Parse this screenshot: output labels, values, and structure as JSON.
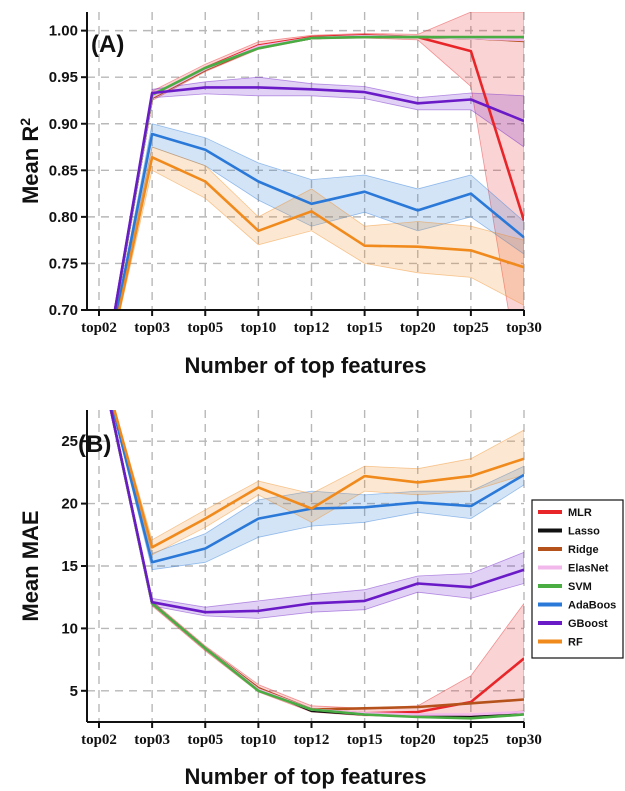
{
  "chart_data": [
    {
      "panel": "(A)",
      "type": "line",
      "title": "",
      "xlabel": "Number of top features",
      "ylabel": "Mean R2",
      "categories": [
        "top02",
        "top03",
        "top05",
        "top10",
        "top12",
        "top15",
        "top20",
        "top25",
        "top30"
      ],
      "ylim": [
        0.7,
        1.02
      ],
      "yticks": [
        0.7,
        0.75,
        0.8,
        0.85,
        0.9,
        0.95,
        1.0
      ],
      "ytick_labels": [
        "0.70",
        "0.75",
        "0.80",
        "0.85",
        "0.90",
        "0.95",
        "1.00"
      ],
      "grid": true,
      "series": [
        {
          "name": "MLR",
          "color": "#e8262a",
          "values": [
            0.6,
            0.93,
            0.96,
            0.984,
            0.993,
            0.995,
            0.993,
            0.978,
            0.796
          ],
          "lower": [
            0.6,
            0.925,
            0.956,
            0.98,
            0.991,
            0.992,
            0.99,
            0.94,
            0.6
          ],
          "upper": [
            0.6,
            0.935,
            0.964,
            0.988,
            0.995,
            0.997,
            0.996,
            1.02,
            1.02
          ]
        },
        {
          "name": "Lasso",
          "color": "#111111",
          "values": [
            0.6,
            0.928,
            0.958,
            0.982,
            0.992,
            0.994,
            0.993,
            0.992,
            0.99
          ]
        },
        {
          "name": "Ridge",
          "color": "#b5521b",
          "values": [
            0.6,
            0.928,
            0.958,
            0.982,
            0.992,
            0.994,
            0.993,
            0.992,
            0.989
          ]
        },
        {
          "name": "ElasNet",
          "color": "#f2b8ec",
          "values": [
            0.6,
            0.929,
            0.959,
            0.983,
            0.992,
            0.994,
            0.993,
            0.992,
            0.99
          ]
        },
        {
          "name": "SVM",
          "color": "#4aad44",
          "values": [
            0.6,
            0.931,
            0.96,
            0.981,
            0.992,
            0.993,
            0.993,
            0.993,
            0.993
          ]
        },
        {
          "name": "AdaBoos",
          "color": "#2a79d8",
          "values": [
            0.6,
            0.889,
            0.872,
            0.838,
            0.814,
            0.827,
            0.807,
            0.825,
            0.778
          ],
          "lower": [
            0.6,
            0.875,
            0.855,
            0.818,
            0.79,
            0.805,
            0.785,
            0.8,
            0.76
          ],
          "upper": [
            0.6,
            0.9,
            0.885,
            0.858,
            0.84,
            0.845,
            0.83,
            0.845,
            0.795
          ]
        },
        {
          "name": "GBoost",
          "color": "#6a1bc7",
          "values": [
            0.6,
            0.933,
            0.939,
            0.939,
            0.937,
            0.934,
            0.922,
            0.926,
            0.903
          ],
          "lower": [
            0.6,
            0.928,
            0.932,
            0.93,
            0.93,
            0.927,
            0.915,
            0.915,
            0.875
          ],
          "upper": [
            0.6,
            0.937,
            0.945,
            0.95,
            0.943,
            0.94,
            0.928,
            0.933,
            0.93
          ]
        },
        {
          "name": "RF",
          "color": "#f08a1c",
          "values": [
            0.6,
            0.864,
            0.838,
            0.785,
            0.806,
            0.769,
            0.768,
            0.764,
            0.746
          ],
          "lower": [
            0.6,
            0.85,
            0.82,
            0.77,
            0.785,
            0.75,
            0.74,
            0.735,
            0.705
          ],
          "upper": [
            0.6,
            0.875,
            0.855,
            0.8,
            0.83,
            0.79,
            0.795,
            0.79,
            0.775
          ]
        }
      ]
    },
    {
      "panel": "(B)",
      "type": "line",
      "title": "",
      "xlabel": "Number of top features",
      "ylabel": "Mean MAE",
      "categories": [
        "top02",
        "top03",
        "top05",
        "top10",
        "top12",
        "top15",
        "top20",
        "top25",
        "top30"
      ],
      "ylim": [
        2.5,
        27.5
      ],
      "yticks": [
        5,
        10,
        15,
        20,
        25
      ],
      "ytick_labels": [
        "5",
        "10",
        "15",
        "20",
        "25"
      ],
      "grid": true,
      "legend_position": "right",
      "series": [
        {
          "name": "MLR",
          "color": "#e8262a",
          "values": [
            32,
            12.0,
            8.4,
            5.2,
            3.5,
            3.2,
            3.3,
            4.1,
            7.6
          ],
          "lower": [
            32,
            11.8,
            8.2,
            4.9,
            3.3,
            3.0,
            3.0,
            3.0,
            3.4
          ],
          "upper": [
            32,
            12.2,
            8.6,
            5.5,
            3.8,
            3.6,
            3.8,
            6.2,
            12.0
          ]
        },
        {
          "name": "Lasso",
          "color": "#111111",
          "values": [
            32,
            12.0,
            8.4,
            5.2,
            3.4,
            3.1,
            3.0,
            2.9,
            3.3
          ]
        },
        {
          "name": "Ridge",
          "color": "#b5521b",
          "values": [
            32,
            12.0,
            8.4,
            5.2,
            3.5,
            3.6,
            3.7,
            4.0,
            4.3
          ]
        },
        {
          "name": "ElasNet",
          "color": "#f2b8ec",
          "values": [
            32,
            12.0,
            8.4,
            5.1,
            3.5,
            3.2,
            3.1,
            3.1,
            3.3
          ]
        },
        {
          "name": "SVM",
          "color": "#4aad44",
          "values": [
            32,
            12.0,
            8.4,
            5.0,
            3.5,
            3.1,
            2.9,
            2.8,
            3.1
          ]
        },
        {
          "name": "AdaBoos",
          "color": "#2a79d8",
          "values": [
            32,
            15.3,
            16.4,
            18.8,
            19.6,
            19.7,
            20.1,
            19.8,
            22.3
          ],
          "lower": [
            32,
            14.7,
            15.3,
            17.3,
            18.2,
            18.5,
            19.3,
            18.8,
            21.5
          ],
          "upper": [
            32,
            16.0,
            17.6,
            20.3,
            21.0,
            20.7,
            21.0,
            21.0,
            23.0
          ]
        },
        {
          "name": "GBoost",
          "color": "#6a1bc7",
          "values": [
            32,
            12.1,
            11.3,
            11.4,
            12.0,
            12.2,
            13.6,
            13.3,
            14.7
          ],
          "lower": [
            32,
            11.8,
            11.0,
            10.8,
            11.3,
            11.5,
            12.9,
            12.4,
            13.6
          ],
          "upper": [
            32,
            12.4,
            11.7,
            12.2,
            12.7,
            13.1,
            14.2,
            14.4,
            16.1
          ]
        },
        {
          "name": "RF",
          "color": "#f08a1c",
          "values": [
            32,
            16.5,
            18.8,
            21.3,
            19.6,
            22.2,
            21.7,
            22.2,
            23.6
          ],
          "lower": [
            32,
            15.9,
            18.1,
            20.7,
            18.5,
            21.0,
            20.7,
            21.0,
            22.3
          ],
          "upper": [
            32,
            17.1,
            19.5,
            21.8,
            20.8,
            23.0,
            22.8,
            23.6,
            25.9
          ]
        }
      ]
    }
  ]
}
